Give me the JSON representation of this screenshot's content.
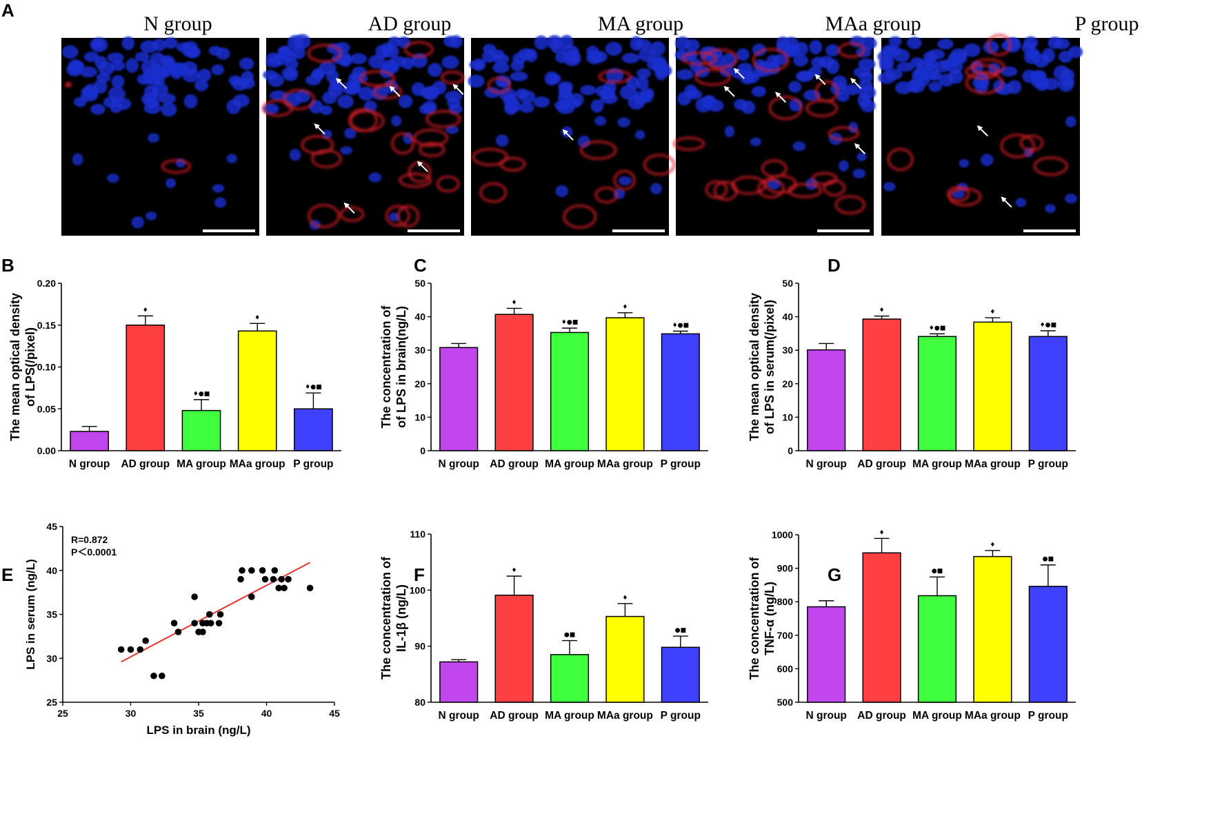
{
  "colors": {
    "groups": [
      "#c146ee",
      "#ff4040",
      "#3fff3f",
      "#ffff00",
      "#4040ff"
    ],
    "fit_line": "#e63232",
    "nuclei": "#1a2fd0",
    "stain": "#e0202a"
  },
  "panel_letters": [
    "A",
    "B",
    "C",
    "D",
    "E",
    "F",
    "G"
  ],
  "micrographs": {
    "titles": [
      "N group",
      "AD group",
      "MA group",
      "MAa group",
      "P group"
    ]
  },
  "chart_data": [
    {
      "id": "B",
      "type": "bar",
      "categories": [
        "N group",
        "AD group",
        "MA group",
        "MAa group",
        "P group"
      ],
      "values": [
        0.023,
        0.15,
        0.048,
        0.143,
        0.05
      ],
      "errors": [
        0.006,
        0.011,
        0.013,
        0.009,
        0.019
      ],
      "sig": [
        "",
        "♦",
        "♦●■",
        "♦",
        "♦●■"
      ],
      "ylabel_lines": [
        "The mean optical density",
        "of LPS(/pixel)"
      ],
      "ylim": [
        0,
        0.2
      ],
      "ticks": [
        0,
        0.05,
        0.1,
        0.15,
        0.2
      ],
      "tick_labels": [
        "0.00",
        "0.05",
        "0.10",
        "0.15",
        "0.20"
      ]
    },
    {
      "id": "C",
      "type": "bar",
      "categories": [
        "N group",
        "AD group",
        "MA group",
        "MAa group",
        "P group"
      ],
      "values": [
        30.8,
        40.7,
        35.3,
        39.7,
        34.9
      ],
      "errors": [
        1.2,
        1.8,
        1.3,
        1.5,
        0.8
      ],
      "sig": [
        "",
        "♦",
        "♦●■",
        "♦",
        "♦●■"
      ],
      "ylabel_lines": [
        "The concentration of",
        "of LPS in brain(ng/L)"
      ],
      "ylim": [
        0,
        50
      ],
      "ticks": [
        0,
        10,
        20,
        30,
        40,
        50
      ],
      "tick_labels": [
        "0",
        "10",
        "20",
        "30",
        "40",
        "50"
      ]
    },
    {
      "id": "D",
      "type": "bar",
      "categories": [
        "N group",
        "AD group",
        "MA group",
        "MAa group",
        "P group"
      ],
      "values": [
        30.1,
        39.3,
        34.1,
        38.4,
        34.1
      ],
      "errors": [
        1.9,
        0.9,
        0.8,
        1.3,
        1.7
      ],
      "sig": [
        "",
        "♦",
        "♦●■",
        "♦",
        "♦●■"
      ],
      "ylabel_lines": [
        "The mean optical density",
        "of LPS in serum(/pixel)"
      ],
      "ylim": [
        0,
        50
      ],
      "ticks": [
        0,
        10,
        20,
        30,
        40,
        50
      ],
      "tick_labels": [
        "0",
        "10",
        "20",
        "30",
        "40",
        "50"
      ]
    },
    {
      "id": "E",
      "type": "scatter",
      "xlabel": "LPS in brain (ng/L)",
      "ylabel": "LPS in serum (ng/L)",
      "xlim": [
        25,
        45
      ],
      "ylim": [
        25,
        45
      ],
      "xticks": [
        25,
        30,
        35,
        40,
        45
      ],
      "yticks": [
        25,
        30,
        35,
        40,
        45
      ],
      "xtick_labels": [
        "25",
        "30",
        "35",
        "40",
        "45"
      ],
      "ytick_labels": [
        "25",
        "30",
        "35",
        "40",
        "45"
      ],
      "annotation_r": "R=0.872",
      "annotation_p": "P＜0.0001",
      "fit": {
        "x": [
          29.3,
          43.2
        ],
        "y": [
          29.6,
          40.9
        ]
      },
      "points": [
        [
          29.3,
          31
        ],
        [
          30.0,
          31
        ],
        [
          30.7,
          31
        ],
        [
          31.1,
          32
        ],
        [
          31.7,
          28
        ],
        [
          32.3,
          28
        ],
        [
          33.2,
          34
        ],
        [
          33.5,
          33
        ],
        [
          34.7,
          37
        ],
        [
          34.7,
          34
        ],
        [
          35.0,
          33
        ],
        [
          35.3,
          33
        ],
        [
          35.3,
          34
        ],
        [
          35.6,
          34
        ],
        [
          35.8,
          35
        ],
        [
          35.9,
          34
        ],
        [
          36.5,
          34
        ],
        [
          36.6,
          35
        ],
        [
          38.1,
          39
        ],
        [
          38.2,
          40
        ],
        [
          38.9,
          40
        ],
        [
          38.9,
          37
        ],
        [
          39.7,
          40
        ],
        [
          39.9,
          39
        ],
        [
          40.5,
          39
        ],
        [
          40.6,
          40
        ],
        [
          40.9,
          38
        ],
        [
          41.1,
          39
        ],
        [
          41.3,
          38
        ],
        [
          41.6,
          39
        ],
        [
          43.2,
          38
        ]
      ]
    },
    {
      "id": "F",
      "type": "bar",
      "categories": [
        "N group",
        "AD group",
        "MA group",
        "MAa group",
        "P group"
      ],
      "values": [
        87.2,
        99.1,
        88.5,
        95.3,
        89.8
      ],
      "errors": [
        0.4,
        3.4,
        2.5,
        2.3,
        2.0
      ],
      "sig": [
        "",
        "♦",
        "●■",
        "♦",
        "●■"
      ],
      "ylabel_lines": [
        "The concentration of",
        "IL-1β (ng/L)"
      ],
      "ylim": [
        80,
        110
      ],
      "ticks": [
        80,
        90,
        100,
        110
      ],
      "tick_labels": [
        "80",
        "90",
        "100",
        "110"
      ]
    },
    {
      "id": "G",
      "type": "bar",
      "categories": [
        "N group",
        "AD group",
        "MA group",
        "MAa group",
        "P group"
      ],
      "values": [
        785,
        946,
        818,
        935,
        846
      ],
      "errors": [
        18,
        43,
        56,
        18,
        64
      ],
      "sig": [
        "",
        "♦",
        "●■",
        "♦",
        "●■"
      ],
      "ylabel_lines": [
        "The concentration of",
        "TNF-α (ng/L)"
      ],
      "ylim": [
        500,
        1000
      ],
      "ticks": [
        500,
        600,
        700,
        800,
        900,
        1000
      ],
      "tick_labels": [
        "500",
        "600",
        "700",
        "800",
        "900",
        "1000"
      ]
    }
  ]
}
